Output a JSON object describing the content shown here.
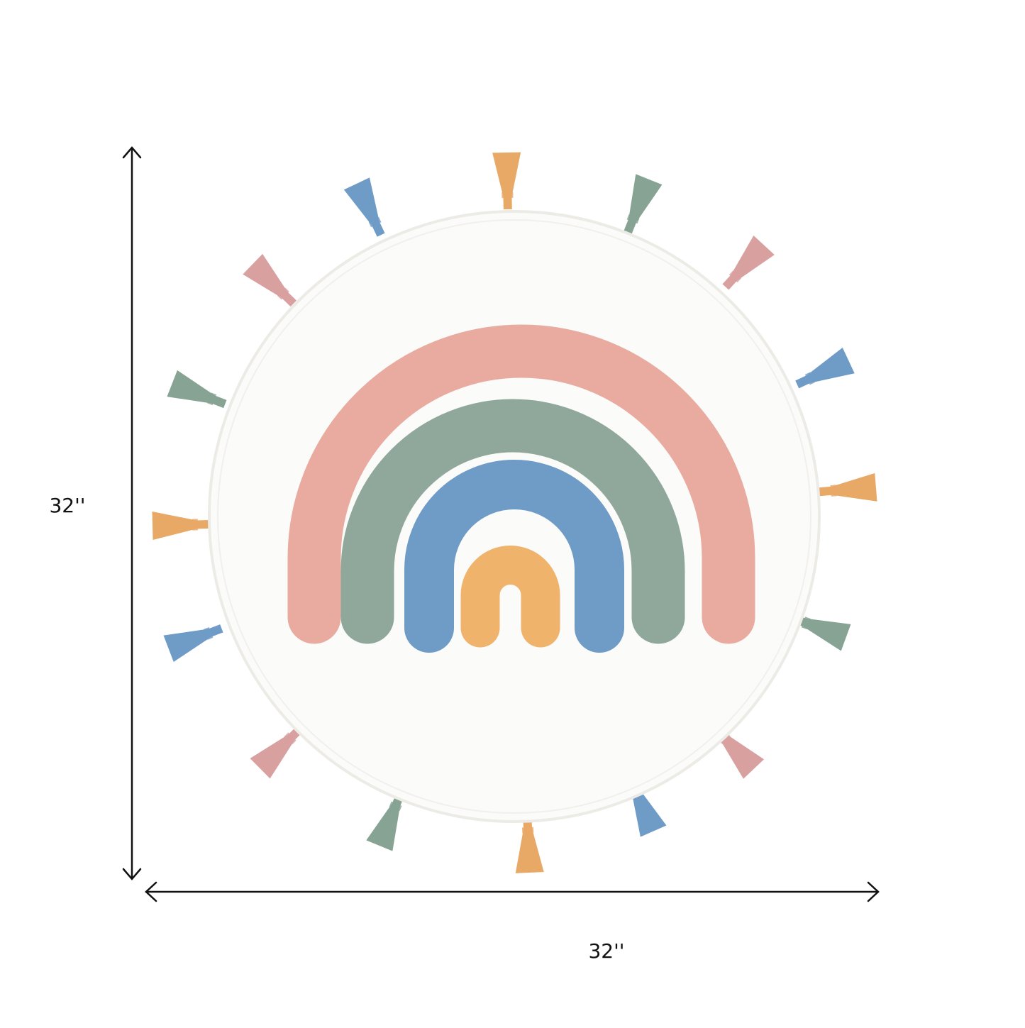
{
  "dimensions": {
    "height": "32''",
    "width": "32''"
  }
}
